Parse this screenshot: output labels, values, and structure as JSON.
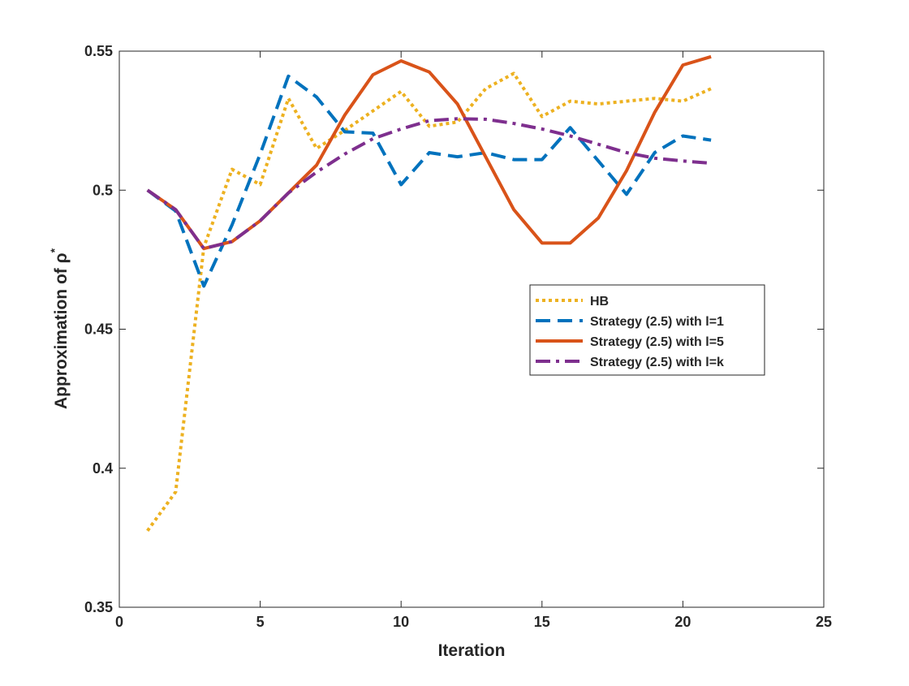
{
  "chart_data": {
    "type": "line",
    "title": "",
    "xlabel": "Iteration",
    "ylabel": "Approximation of ρ",
    "ylabel_superscript": "*",
    "xlim": [
      0,
      25
    ],
    "ylim": [
      0.35,
      0.55
    ],
    "xticks": [
      0,
      5,
      10,
      15,
      20,
      25
    ],
    "yticks": [
      0.35,
      0.4,
      0.45,
      0.5,
      0.55
    ],
    "xtick_labels": [
      "0",
      "5",
      "10",
      "15",
      "20",
      "25"
    ],
    "ytick_labels": [
      "0.35",
      "0.4",
      "0.45",
      "0.5",
      "0.55"
    ],
    "grid": false,
    "legend_position": "center-right",
    "x": [
      1,
      2,
      3,
      4,
      5,
      6,
      7,
      8,
      9,
      10,
      11,
      12,
      13,
      14,
      15,
      16,
      17,
      18,
      19,
      20,
      21
    ],
    "series": [
      {
        "name": "HB",
        "color": "#EDB120",
        "style": "dotted",
        "values": [
          0.3775,
          0.3915,
          0.4795,
          0.5075,
          0.502,
          0.533,
          0.515,
          0.5215,
          0.5285,
          0.5355,
          0.523,
          0.5245,
          0.5365,
          0.542,
          0.5265,
          0.532,
          0.531,
          0.532,
          0.533,
          0.532,
          0.5365
        ]
      },
      {
        "name": "Strategy (2.5) with l=1",
        "color": "#0072BD",
        "style": "dashed",
        "values": [
          0.5,
          0.4925,
          0.4655,
          0.4875,
          0.513,
          0.541,
          0.5335,
          0.521,
          0.5205,
          0.502,
          0.5135,
          0.512,
          0.5135,
          0.511,
          0.511,
          0.5225,
          0.5105,
          0.4985,
          0.5135,
          0.5195,
          0.518
        ]
      },
      {
        "name": "Strategy (2.5) with l=5",
        "color": "#D95319",
        "style": "solid",
        "values": [
          0.5,
          0.493,
          0.479,
          0.4815,
          0.489,
          0.499,
          0.509,
          0.527,
          0.5415,
          0.5465,
          0.5425,
          0.531,
          0.512,
          0.493,
          0.481,
          0.481,
          0.49,
          0.507,
          0.528,
          0.545,
          0.548
        ]
      },
      {
        "name": "Strategy (2.5) with l=k",
        "color": "#7E2F8E",
        "style": "dashdot",
        "values": [
          0.5,
          0.493,
          0.479,
          0.4815,
          0.489,
          0.499,
          0.5065,
          0.513,
          0.5185,
          0.522,
          0.525,
          0.5257,
          0.5255,
          0.524,
          0.522,
          0.5195,
          0.5165,
          0.5135,
          0.5115,
          0.5105,
          0.5097
        ]
      }
    ]
  }
}
